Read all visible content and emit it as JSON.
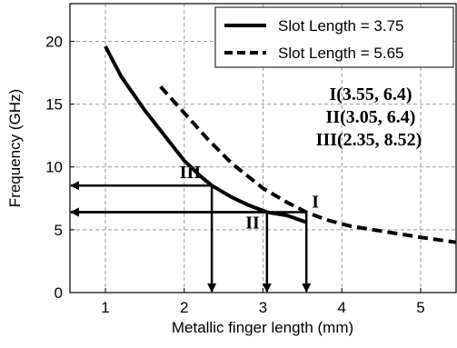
{
  "chart_data": {
    "type": "line",
    "xlabel": "Metallic finger length (mm)",
    "ylabel": "Frequency (GHz)",
    "xlim": [
      0.55,
      5.45
    ],
    "ylim": [
      0,
      23
    ],
    "xticks": [
      "1",
      "2",
      "3",
      "4",
      "5"
    ],
    "yticks": [
      "0",
      "5",
      "10",
      "15",
      "20"
    ],
    "grid": true,
    "legend_position": "top-right",
    "series": [
      {
        "name": "Slot Length = 3.75",
        "style": "solid",
        "x": [
          1.0,
          1.2,
          1.5,
          1.8,
          2.0,
          2.2,
          2.35,
          2.6,
          2.8,
          3.05,
          3.3,
          3.55
        ],
        "y": [
          19.6,
          17.2,
          14.5,
          12.1,
          10.5,
          9.3,
          8.52,
          7.6,
          7.0,
          6.4,
          6.15,
          5.6
        ]
      },
      {
        "name": "Slot Length = 5.65",
        "style": "dashed",
        "x": [
          1.7,
          2.0,
          2.3,
          2.6,
          3.0,
          3.3,
          3.55,
          3.8,
          4.1,
          4.5,
          5.0,
          5.45
        ],
        "y": [
          16.4,
          14.3,
          12.2,
          10.3,
          8.3,
          7.2,
          6.4,
          5.8,
          5.3,
          4.9,
          4.4,
          4.0
        ]
      }
    ],
    "annotations": [
      {
        "label": "I(3.55, 6.4)"
      },
      {
        "label": "II(3.05, 6.4)"
      },
      {
        "label": "III(2.35, 8.52)"
      }
    ],
    "markers": [
      {
        "label": "I",
        "x": 3.55,
        "y": 6.4
      },
      {
        "label": "II",
        "x": 3.05,
        "y": 6.4
      },
      {
        "label": "III",
        "x": 2.35,
        "y": 8.52
      }
    ]
  }
}
